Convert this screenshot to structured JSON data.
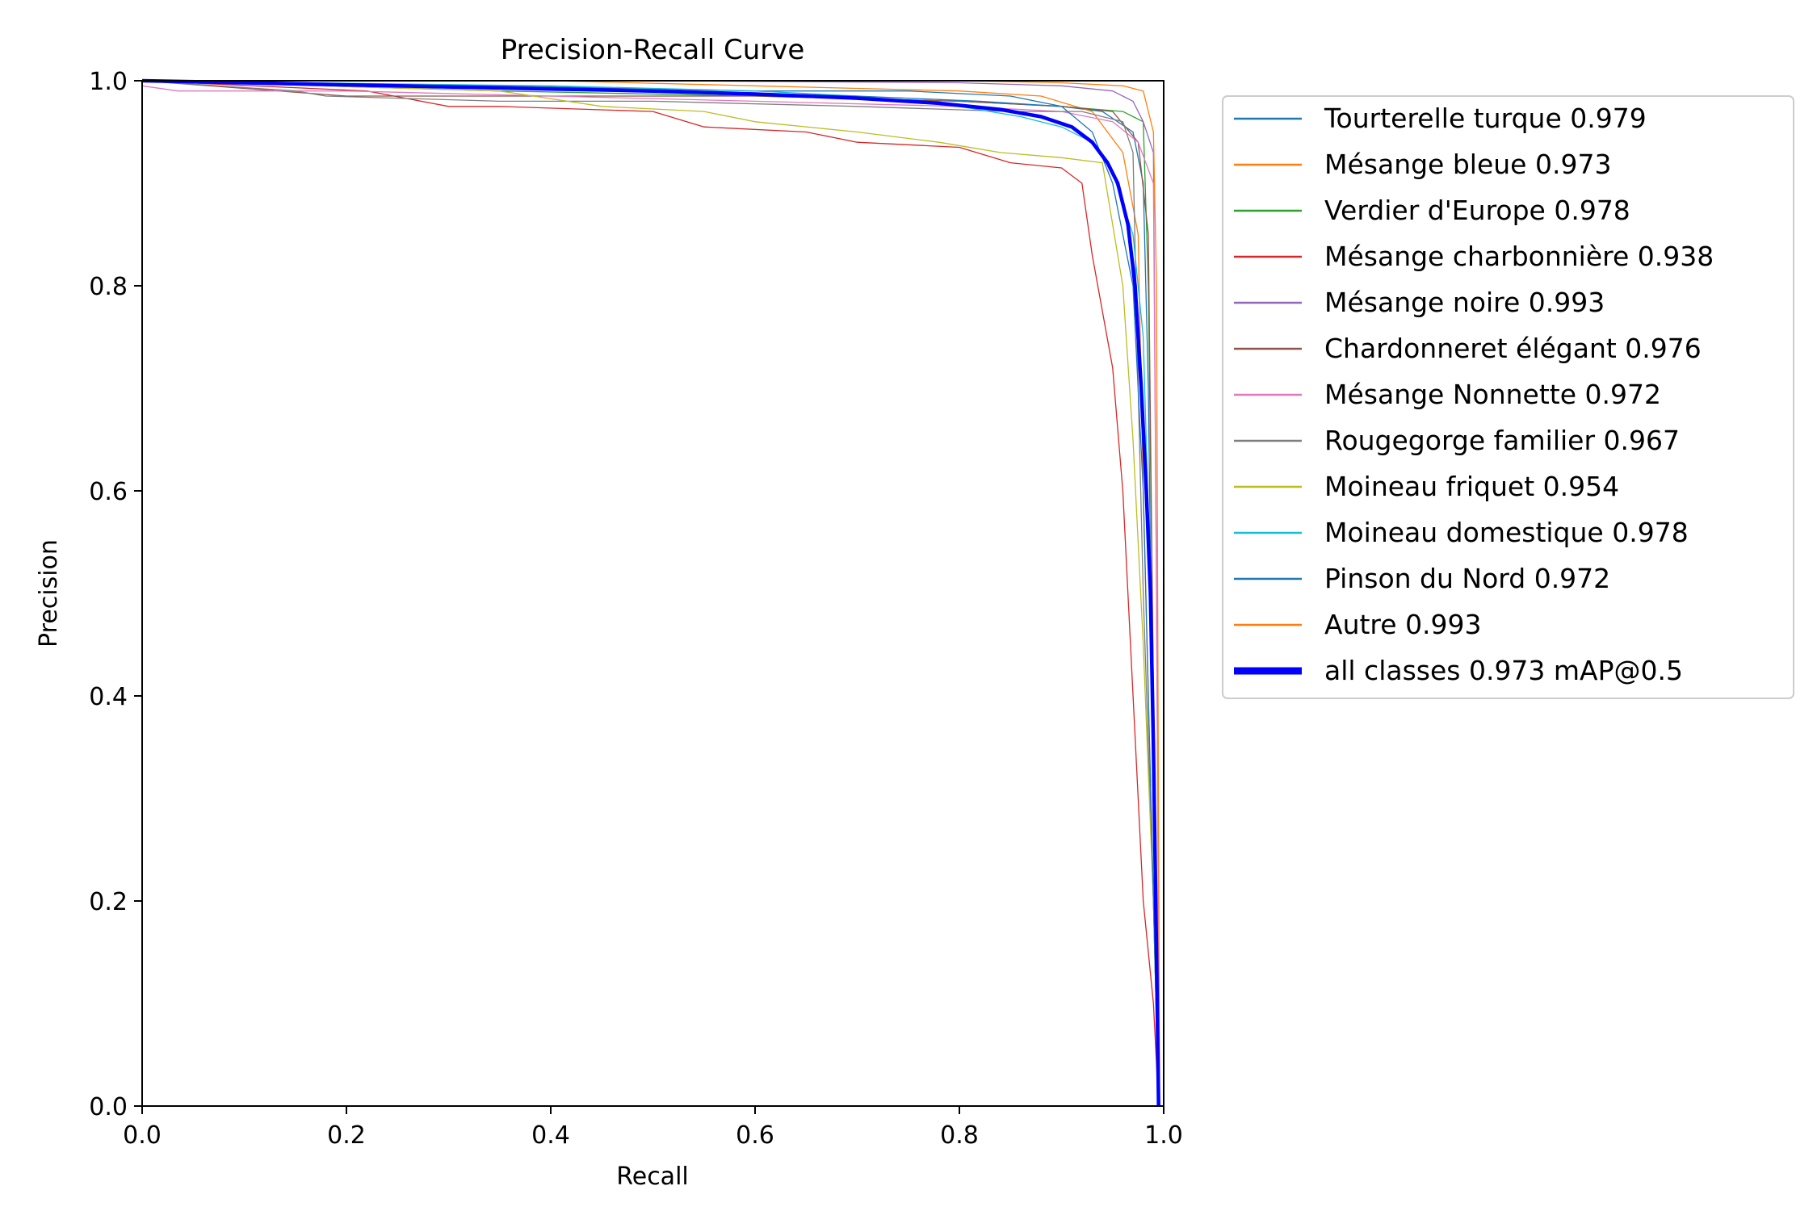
{
  "chart_data": {
    "type": "line",
    "title": "Precision-Recall Curve",
    "xlabel": "Recall",
    "ylabel": "Precision",
    "xlim": [
      0.0,
      1.0
    ],
    "ylim": [
      0.0,
      1.0
    ],
    "xticks": [
      "0.0",
      "0.2",
      "0.4",
      "0.6",
      "0.8",
      "1.0"
    ],
    "yticks": [
      "0.0",
      "0.2",
      "0.4",
      "0.6",
      "0.8",
      "1.0"
    ],
    "grid": false,
    "legend_position": "outside-right",
    "series": [
      {
        "name": "Tourterelle turque 0.979",
        "color": "#1f77b4",
        "width": 1.3,
        "points": [
          [
            0,
            1
          ],
          [
            0.35,
            0.995
          ],
          [
            0.6,
            0.99
          ],
          [
            0.75,
            0.99
          ],
          [
            0.85,
            0.985
          ],
          [
            0.9,
            0.975
          ],
          [
            0.94,
            0.97
          ],
          [
            0.97,
            0.95
          ],
          [
            0.98,
            0.9
          ],
          [
            0.985,
            0.7
          ],
          [
            0.99,
            0.3
          ],
          [
            0.995,
            0
          ]
        ]
      },
      {
        "name": "Mésange bleue 0.973",
        "color": "#ff7f0e",
        "width": 1.3,
        "points": [
          [
            0,
            1
          ],
          [
            0.4,
            1
          ],
          [
            0.6,
            0.995
          ],
          [
            0.8,
            0.99
          ],
          [
            0.88,
            0.985
          ],
          [
            0.93,
            0.97
          ],
          [
            0.96,
            0.93
          ],
          [
            0.975,
            0.85
          ],
          [
            0.98,
            0.6
          ],
          [
            0.99,
            0.2
          ],
          [
            0.995,
            0
          ]
        ]
      },
      {
        "name": "Verdier d'Europe 0.978",
        "color": "#2ca02c",
        "width": 1.3,
        "points": [
          [
            0,
            1
          ],
          [
            0.35,
            0.99
          ],
          [
            0.6,
            0.985
          ],
          [
            0.8,
            0.98
          ],
          [
            0.9,
            0.975
          ],
          [
            0.96,
            0.97
          ],
          [
            0.98,
            0.96
          ],
          [
            0.985,
            0.8
          ],
          [
            0.99,
            0.4
          ],
          [
            0.995,
            0
          ]
        ]
      },
      {
        "name": "Mésange charbonnière 0.938",
        "color": "#d62728",
        "width": 1.3,
        "points": [
          [
            0,
            1
          ],
          [
            0.22,
            0.99
          ],
          [
            0.3,
            0.975
          ],
          [
            0.35,
            0.975
          ],
          [
            0.5,
            0.97
          ],
          [
            0.55,
            0.955
          ],
          [
            0.65,
            0.95
          ],
          [
            0.7,
            0.94
          ],
          [
            0.8,
            0.935
          ],
          [
            0.85,
            0.92
          ],
          [
            0.9,
            0.915
          ],
          [
            0.92,
            0.9
          ],
          [
            0.93,
            0.83
          ],
          [
            0.95,
            0.72
          ],
          [
            0.96,
            0.6
          ],
          [
            0.975,
            0.3
          ],
          [
            0.98,
            0.2
          ],
          [
            0.99,
            0.1
          ],
          [
            0.995,
            0
          ]
        ]
      },
      {
        "name": "Mésange noire 0.993",
        "color": "#9467bd",
        "width": 1.3,
        "points": [
          [
            0,
            1
          ],
          [
            0.5,
            1
          ],
          [
            0.8,
            0.998
          ],
          [
            0.9,
            0.995
          ],
          [
            0.95,
            0.99
          ],
          [
            0.97,
            0.98
          ],
          [
            0.98,
            0.96
          ],
          [
            0.99,
            0.93
          ],
          [
            0.993,
            0.5
          ],
          [
            0.996,
            0
          ]
        ]
      },
      {
        "name": "Chardonneret élégant 0.976",
        "color": "#8c564b",
        "width": 1.3,
        "points": [
          [
            0,
            1
          ],
          [
            0.2,
            0.985
          ],
          [
            0.4,
            0.985
          ],
          [
            0.6,
            0.985
          ],
          [
            0.8,
            0.98
          ],
          [
            0.9,
            0.975
          ],
          [
            0.95,
            0.97
          ],
          [
            0.975,
            0.94
          ],
          [
            0.985,
            0.85
          ],
          [
            0.99,
            0.4
          ],
          [
            0.995,
            0
          ]
        ]
      },
      {
        "name": "Mésange Nonnette 0.972",
        "color": "#e377c2",
        "width": 1.3,
        "points": [
          [
            0,
            0.995
          ],
          [
            0.035,
            0.99
          ],
          [
            0.2,
            0.99
          ],
          [
            0.4,
            0.985
          ],
          [
            0.6,
            0.98
          ],
          [
            0.8,
            0.975
          ],
          [
            0.9,
            0.97
          ],
          [
            0.95,
            0.96
          ],
          [
            0.975,
            0.94
          ],
          [
            0.99,
            0.9
          ],
          [
            0.993,
            0.5
          ],
          [
            0.996,
            0
          ]
        ]
      },
      {
        "name": "Rougegorge familier 0.967",
        "color": "#7f7f7f",
        "width": 1.3,
        "points": [
          [
            0,
            1
          ],
          [
            0.15,
            0.99
          ],
          [
            0.18,
            0.985
          ],
          [
            0.35,
            0.98
          ],
          [
            0.5,
            0.98
          ],
          [
            0.7,
            0.975
          ],
          [
            0.85,
            0.97
          ],
          [
            0.92,
            0.97
          ],
          [
            0.96,
            0.96
          ],
          [
            0.97,
            0.93
          ],
          [
            0.975,
            0.7
          ],
          [
            0.98,
            0.5
          ],
          [
            0.99,
            0.2
          ],
          [
            0.995,
            0
          ]
        ]
      },
      {
        "name": "Moineau friquet 0.954",
        "color": "#bcbd22",
        "width": 1.3,
        "points": [
          [
            0,
            1
          ],
          [
            0.35,
            0.99
          ],
          [
            0.45,
            0.975
          ],
          [
            0.55,
            0.97
          ],
          [
            0.6,
            0.96
          ],
          [
            0.7,
            0.95
          ],
          [
            0.78,
            0.94
          ],
          [
            0.84,
            0.93
          ],
          [
            0.9,
            0.925
          ],
          [
            0.94,
            0.92
          ],
          [
            0.96,
            0.8
          ],
          [
            0.97,
            0.65
          ],
          [
            0.98,
            0.45
          ],
          [
            0.99,
            0.2
          ],
          [
            0.995,
            0
          ]
        ]
      },
      {
        "name": "Moineau domestique 0.978",
        "color": "#17becf",
        "width": 1.3,
        "points": [
          [
            0,
            1
          ],
          [
            0.4,
            0.995
          ],
          [
            0.6,
            0.99
          ],
          [
            0.7,
            0.985
          ],
          [
            0.8,
            0.975
          ],
          [
            0.86,
            0.965
          ],
          [
            0.9,
            0.955
          ],
          [
            0.93,
            0.94
          ],
          [
            0.95,
            0.91
          ],
          [
            0.97,
            0.85
          ],
          [
            0.98,
            0.75
          ],
          [
            0.99,
            0.4
          ],
          [
            0.995,
            0
          ]
        ]
      },
      {
        "name": "Pinson du Nord 0.972",
        "color": "#1f77b4",
        "width": 1.3,
        "points": [
          [
            0,
            1
          ],
          [
            0.3,
            0.995
          ],
          [
            0.5,
            0.99
          ],
          [
            0.7,
            0.985
          ],
          [
            0.82,
            0.98
          ],
          [
            0.9,
            0.975
          ],
          [
            0.93,
            0.95
          ],
          [
            0.95,
            0.9
          ],
          [
            0.97,
            0.8
          ],
          [
            0.98,
            0.6
          ],
          [
            0.99,
            0.2
          ],
          [
            0.995,
            0
          ]
        ]
      },
      {
        "name": "Autre 0.993",
        "color": "#ff7f0e",
        "width": 1.3,
        "points": [
          [
            0,
            1
          ],
          [
            0.5,
            1
          ],
          [
            0.8,
            1
          ],
          [
            0.9,
            0.998
          ],
          [
            0.96,
            0.995
          ],
          [
            0.98,
            0.99
          ],
          [
            0.99,
            0.95
          ],
          [
            0.993,
            0.8
          ],
          [
            0.996,
            0
          ]
        ]
      },
      {
        "name": "all classes 0.973 mAP@0.5",
        "color": "#0000ff",
        "width": 4.5,
        "points": [
          [
            0,
            1
          ],
          [
            0.1,
            0.998
          ],
          [
            0.2,
            0.996
          ],
          [
            0.3,
            0.994
          ],
          [
            0.4,
            0.992
          ],
          [
            0.5,
            0.99
          ],
          [
            0.6,
            0.987
          ],
          [
            0.7,
            0.983
          ],
          [
            0.78,
            0.978
          ],
          [
            0.84,
            0.972
          ],
          [
            0.88,
            0.965
          ],
          [
            0.91,
            0.955
          ],
          [
            0.93,
            0.94
          ],
          [
            0.945,
            0.92
          ],
          [
            0.955,
            0.9
          ],
          [
            0.965,
            0.86
          ],
          [
            0.972,
            0.8
          ],
          [
            0.978,
            0.7
          ],
          [
            0.983,
            0.6
          ],
          [
            0.987,
            0.5
          ],
          [
            0.99,
            0.35
          ],
          [
            0.993,
            0.15
          ],
          [
            0.995,
            0
          ]
        ]
      }
    ]
  }
}
